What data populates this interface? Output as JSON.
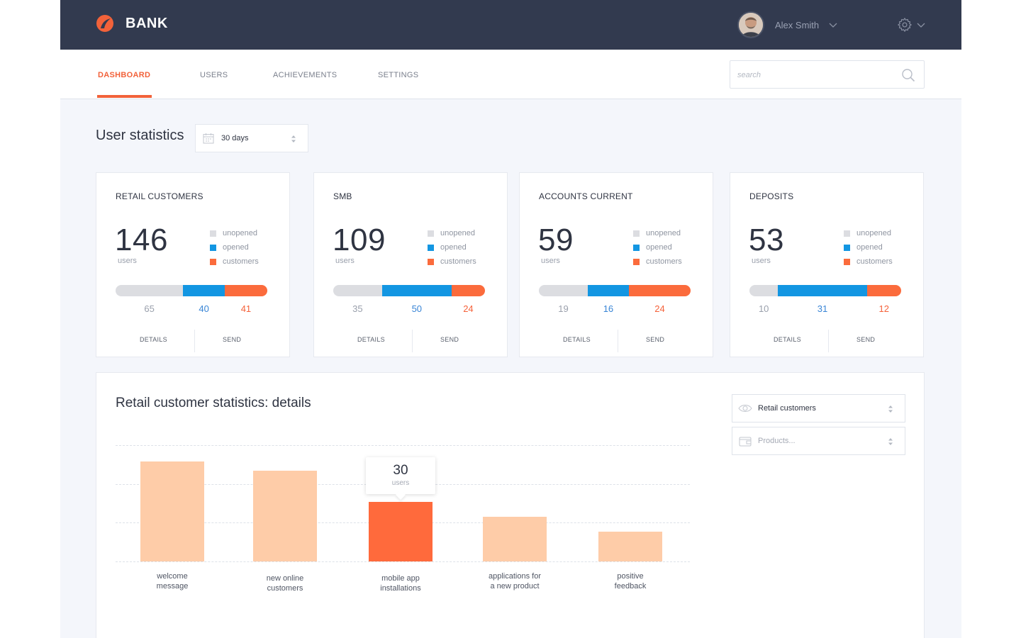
{
  "colors": {
    "accent": "#f2623a",
    "topbar": "#323a4f",
    "unopened": "#dcdde1",
    "opened": "#1396e2",
    "customers": "#fb6b3c",
    "bar_light": "#fecca8",
    "bar_active": "#ff6a3c",
    "num_grey": "#9aa0ac",
    "num_blue": "#3a86d6",
    "num_orange": "#f5623a"
  },
  "header": {
    "brand": "BANK",
    "user_name": "Alex Smith"
  },
  "nav": {
    "tabs": [
      {
        "label": "DASHBOARD",
        "active": true
      },
      {
        "label": "USERS",
        "active": false
      },
      {
        "label": "ACHIEVEMENTS",
        "active": false
      },
      {
        "label": "SETTINGS",
        "active": false
      }
    ],
    "search_placeholder": "search"
  },
  "stats": {
    "title": "User statistics",
    "period": "30 days"
  },
  "legend": {
    "unopened": "unopened",
    "opened": "opened",
    "customers": "customers"
  },
  "cards": [
    {
      "title": "RETAIL CUSTOMERS",
      "total": "146",
      "unit": "users",
      "unopened": 65,
      "opened": 40,
      "customers": 41,
      "details": "DETAILS",
      "send": "SEND"
    },
    {
      "title": "SMB",
      "total": "109",
      "unit": "users",
      "unopened": 35,
      "opened": 50,
      "customers": 24,
      "details": "DETAILS",
      "send": "SEND"
    },
    {
      "title": "ACCOUNTS CURRENT",
      "total": "59",
      "unit": "users",
      "unopened": 19,
      "opened": 16,
      "customers": 24,
      "details": "DETAILS",
      "send": "SEND"
    },
    {
      "title": "DEPOSITS",
      "total": "53",
      "unit": "users",
      "unopened": 10,
      "opened": 31,
      "customers": 12,
      "details": "DETAILS",
      "send": "SEND"
    }
  ],
  "details": {
    "title": "Retail customer statistics: details",
    "segment_select": "Retail customers",
    "products_placeholder": "Products..."
  },
  "chart_data": {
    "type": "bar",
    "title": "Retail customer statistics: details",
    "categories": [
      "welcome message",
      "new online customers",
      "mobile app installations",
      "applications for a new product",
      "positive feedback"
    ],
    "category_lines": [
      [
        "welcome",
        "message"
      ],
      [
        "new online",
        "customers"
      ],
      [
        "mobile app",
        "installations"
      ],
      [
        "applications for",
        "a new product"
      ],
      [
        "positive",
        "feedback"
      ]
    ],
    "values": [
      52,
      47,
      30,
      22,
      14
    ],
    "highlighted_index": 2,
    "tooltip_value": "30",
    "tooltip_unit": "users",
    "ylim": [
      0,
      60
    ],
    "grid": true,
    "xlabel": "",
    "ylabel": ""
  }
}
